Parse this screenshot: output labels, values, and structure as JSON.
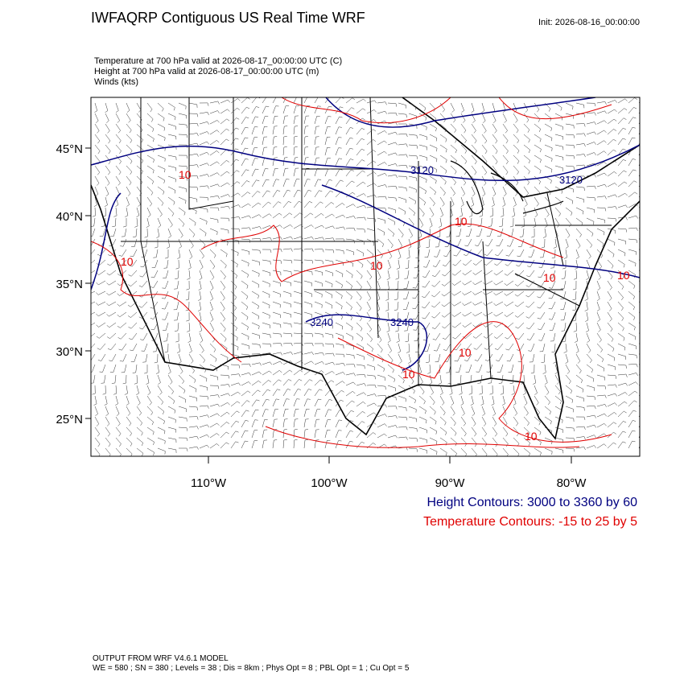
{
  "header": {
    "title": "IWFAQRP Contiguous US Real Time WRF",
    "init": "Init: 2026-08-16_00:00:00",
    "fields": [
      "Temperature at 700 hPa valid at 2026-08-17_00:00:00 UTC   (C)",
      "Height at 700 hPa valid at 2026-08-17_00:00:00 UTC   (m)",
      "Winds   (kts)"
    ]
  },
  "map": {
    "lat_labels": [
      "45°N",
      "40°N",
      "35°N",
      "30°N",
      "25°N"
    ],
    "lon_labels": [
      "110°W",
      "100°W",
      "90°W",
      "80°W"
    ],
    "height_contour_labels": [
      "3120",
      "3120",
      "3240",
      "3240"
    ],
    "temperature_contour_labels": [
      "10",
      "10",
      "10",
      "10",
      "10",
      "10",
      "10",
      "10",
      "10"
    ]
  },
  "legend": {
    "height": "Height Contours: 3000 to 3360 by 60",
    "temperature": "Temperature Contours: -15 to 25 by 5"
  },
  "footer": {
    "model": "OUTPUT FROM WRF V4.6.1 MODEL",
    "settings": "WE = 580 ; SN = 380 ; Levels = 38 ; Dis = 8km ; Phys Opt = 8 ; PBL Opt = 1 ; Cu Opt = 5"
  }
}
